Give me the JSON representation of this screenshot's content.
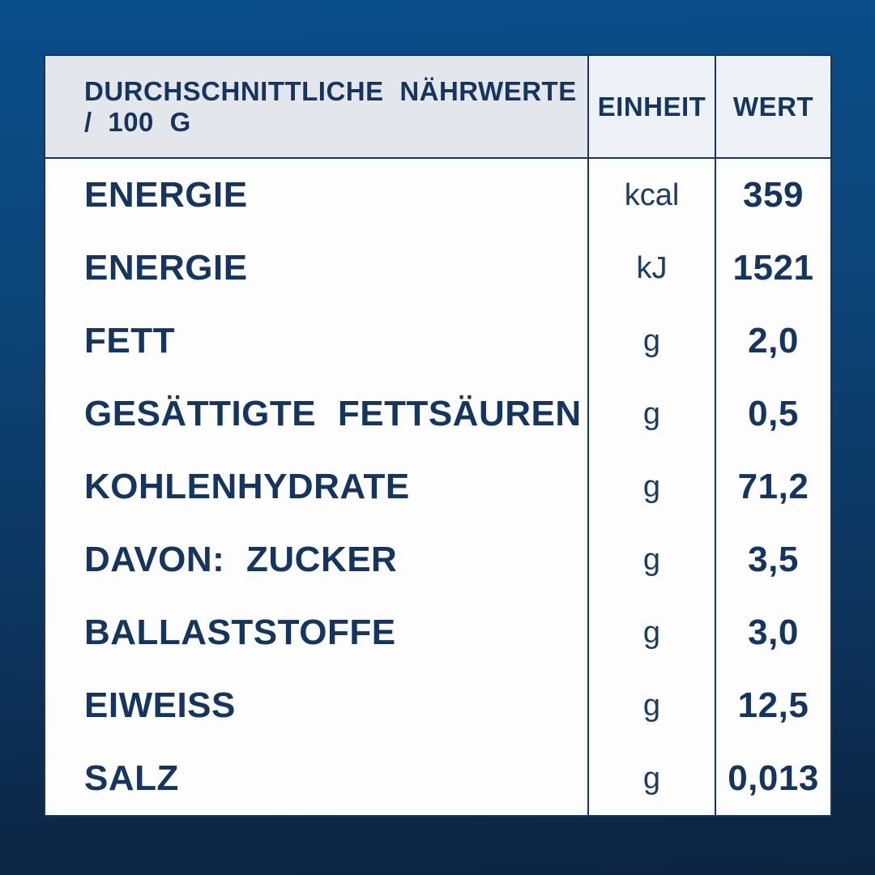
{
  "colors": {
    "background_top": "#0a4e8a",
    "background_bottom": "#0c2440",
    "table_line": "#16365c",
    "text_navy": "#14355f",
    "header_left_bg": "#e3e7ec",
    "header_right_bg": "#eef1f5"
  },
  "table": {
    "header": {
      "col_nutrient": "DURCHSCHNITTLICHE NÄHRWERTE / 100 G",
      "col_unit": "EINHEIT",
      "col_value": "WERT"
    },
    "rows": [
      {
        "label": "ENERGIE",
        "unit": "kcal",
        "value": "359"
      },
      {
        "label": "ENERGIE",
        "unit": "kJ",
        "value": "1521"
      },
      {
        "label": "FETT",
        "unit": "g",
        "value": "2,0"
      },
      {
        "label": "GESÄTTIGTE FETTSÄUREN",
        "unit": "g",
        "value": "0,5"
      },
      {
        "label": "KOHLENHYDRATE",
        "unit": "g",
        "value": "71,2"
      },
      {
        "label": "DAVON: ZUCKER",
        "unit": "g",
        "value": "3,5"
      },
      {
        "label": "BALLASTSTOFFE",
        "unit": "g",
        "value": "3,0"
      },
      {
        "label": "EIWEISS",
        "unit": "g",
        "value": "12,5"
      },
      {
        "label": "SALZ",
        "unit": "g",
        "value": "0,013"
      }
    ]
  }
}
